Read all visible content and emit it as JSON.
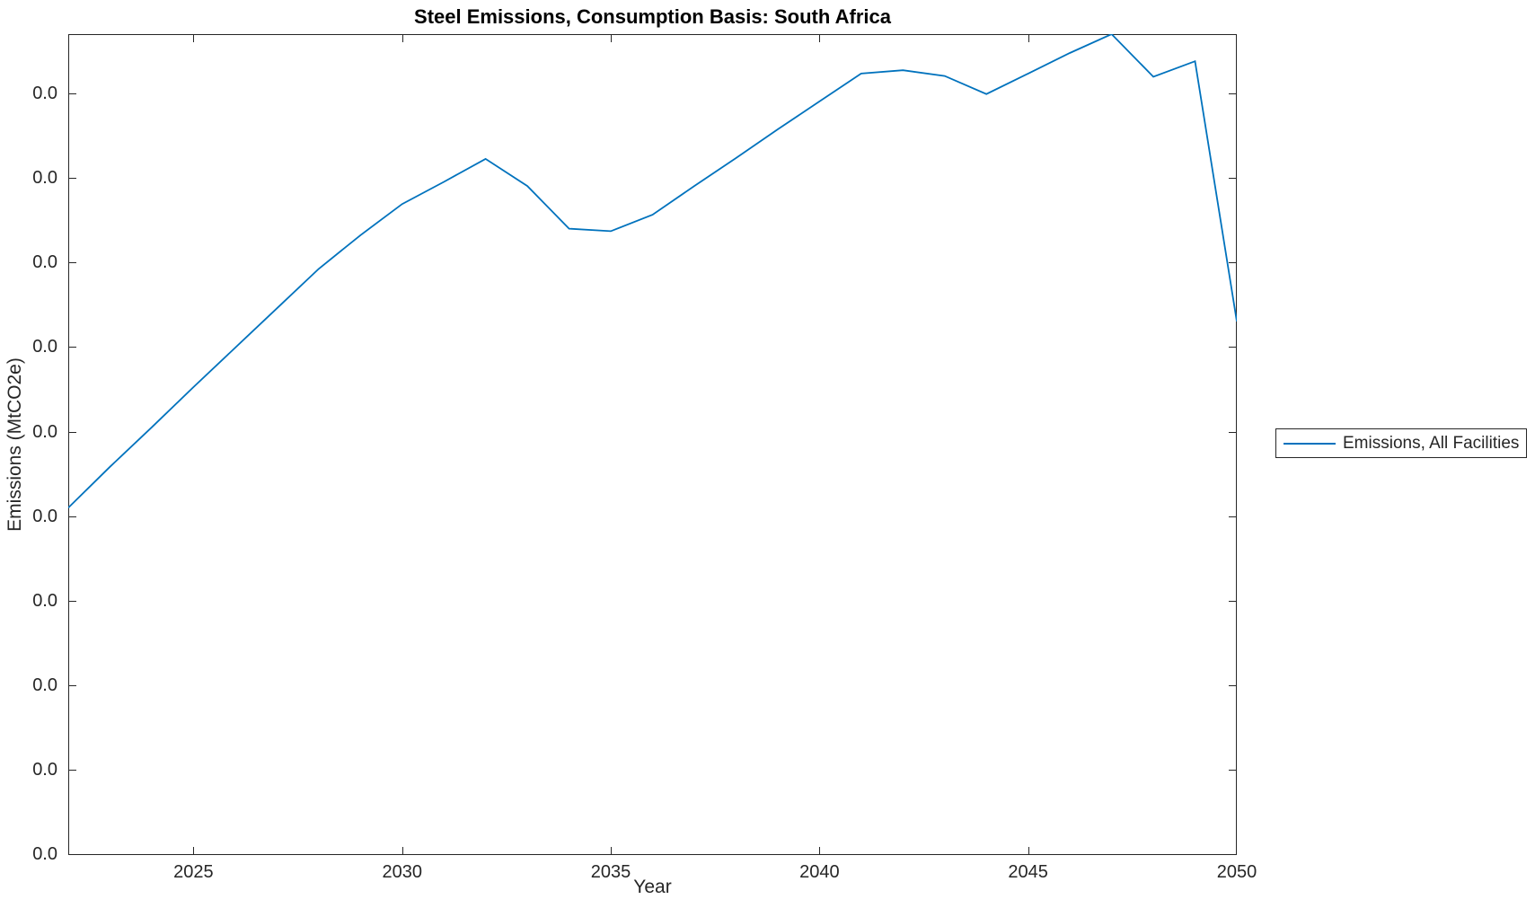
{
  "figure": {
    "title": "Steel Emissions, Consumption Basis: South Africa",
    "xlabel": "Year",
    "ylabel": "Emissions (MtCO2e)",
    "background_color": "#ffffff",
    "axis_color": "#262626",
    "line_color": "#0072BD"
  },
  "legend": {
    "position": "right-outside",
    "entries": [
      {
        "label": "Emissions, All Facilities",
        "color": "#0072BD"
      }
    ]
  },
  "chart_data": {
    "type": "line",
    "title": "Steel Emissions, Consumption Basis: South Africa",
    "xlabel": "Year",
    "ylabel": "Emissions (MtCO2e)",
    "xlim": [
      2022,
      2050
    ],
    "x_ticks": [
      2025,
      2030,
      2035,
      2040,
      2045,
      2050
    ],
    "y_tick_labels": [
      "0.0",
      "0.0",
      "0.0",
      "0.0",
      "0.0",
      "0.0",
      "0.0",
      "0.0",
      "0.0",
      "0.0"
    ],
    "y_ticks_note": "10 evenly spaced ticks from bottom of axis upward; every tick label displays 0.0, so absolute magnitudes are not readable from the axis",
    "grid": false,
    "legend_position": "right-outside",
    "series": [
      {
        "name": "Emissions, All Facilities",
        "x": [
          2022,
          2023,
          2024,
          2025,
          2026,
          2027,
          2028,
          2029,
          2030,
          2031,
          2032,
          2033,
          2034,
          2035,
          2036,
          2037,
          2038,
          2039,
          2040,
          2041,
          2042,
          2043,
          2044,
          2045,
          2046,
          2047,
          2048,
          2049,
          2050
        ],
        "y_relative": [
          0.423,
          0.473,
          0.521,
          0.57,
          0.618,
          0.666,
          0.714,
          0.755,
          0.793,
          0.82,
          0.848,
          0.815,
          0.763,
          0.76,
          0.78,
          0.815,
          0.849,
          0.884,
          0.918,
          0.952,
          0.956,
          0.949,
          0.927,
          0.952,
          0.977,
          1.0,
          0.948,
          0.967,
          0.65
        ],
        "y_scale_note": "values are relative plot-height fractions (0 = bottom axis, 1 = top axis) estimated from pixels; axis tick labels all show 0.0"
      }
    ]
  }
}
